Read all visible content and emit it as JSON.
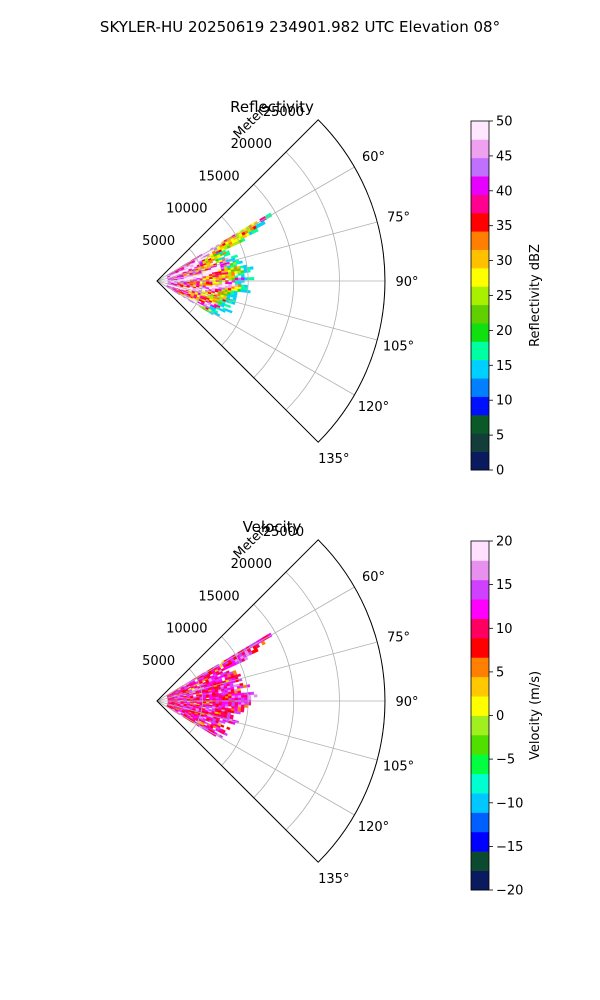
{
  "figure": {
    "title": "SKYLER-HU  20250619  234901.982 UTC Elevation 08°"
  },
  "chart_data": [
    {
      "type": "heatmap",
      "subtype": "polar-sector-ppi",
      "title": "Reflectivity",
      "radial_label": "Meters",
      "r_ticks": [
        {
          "value": 5000,
          "label": "5000"
        },
        {
          "value": 10000,
          "label": "10000"
        },
        {
          "value": 15000,
          "label": "15000"
        },
        {
          "value": 20000,
          "label": "20000"
        },
        {
          "value": 25000,
          "label": "25000"
        }
      ],
      "r_max": 25000,
      "theta_ticks": [
        {
          "value": 60,
          "label": "60°"
        },
        {
          "value": 75,
          "label": "75°"
        },
        {
          "value": 90,
          "label": "90°"
        },
        {
          "value": 105,
          "label": "105°"
        },
        {
          "value": 120,
          "label": "120°"
        },
        {
          "value": 135,
          "label": "135°"
        }
      ],
      "theta_range": [
        45,
        135
      ],
      "data_extent": {
        "azimuth_range": [
          59,
          121
        ],
        "max_range_m": 12000,
        "note_values": "echo concentrated within ~12 km, strongest returns 30-45 dBZ near 4-8 km"
      },
      "colorbar": {
        "label": "Reflectivity dBZ",
        "min": 0,
        "max": 50,
        "ticks": [
          0,
          5,
          10,
          15,
          20,
          25,
          30,
          35,
          40,
          45,
          50
        ],
        "tick_labels": [
          "0",
          "5",
          "10",
          "15",
          "20",
          "25",
          "30",
          "35",
          "40",
          "45",
          "50"
        ],
        "colors": [
          "#0a1a5e",
          "#123d3a",
          "#0a5a28",
          "#0010ff",
          "#0080ff",
          "#00d0ff",
          "#00ffa0",
          "#10e010",
          "#60d000",
          "#a8f000",
          "#ffff00",
          "#ffc000",
          "#ff8000",
          "#ff0000",
          "#ff0090",
          "#e800ff",
          "#c070ff",
          "#f0a0f0",
          "#ffe8ff"
        ]
      }
    },
    {
      "type": "heatmap",
      "subtype": "polar-sector-ppi",
      "title": "Velocity",
      "radial_label": "Meters",
      "r_ticks": [
        {
          "value": 5000,
          "label": "5000"
        },
        {
          "value": 10000,
          "label": "10000"
        },
        {
          "value": 15000,
          "label": "15000"
        },
        {
          "value": 20000,
          "label": "20000"
        },
        {
          "value": 25000,
          "label": "25000"
        }
      ],
      "r_max": 25000,
      "theta_ticks": [
        {
          "value": 60,
          "label": "60°"
        },
        {
          "value": 75,
          "label": "75°"
        },
        {
          "value": 90,
          "label": "90°"
        },
        {
          "value": 105,
          "label": "105°"
        },
        {
          "value": 120,
          "label": "120°"
        },
        {
          "value": 135,
          "label": "135°"
        }
      ],
      "theta_range": [
        45,
        135
      ],
      "data_extent": {
        "azimuth_range": [
          59,
          121
        ],
        "max_range_m": 12000,
        "note_values": "predominantly 10-15 m/s (red/magenta) with patches near 5 m/s"
      },
      "colorbar": {
        "label": "Velocity (m/s)",
        "min": -20,
        "max": 20,
        "ticks": [
          -20,
          -15,
          -10,
          -5,
          0,
          5,
          10,
          15,
          20
        ],
        "tick_labels": [
          "−20",
          "−15",
          "−10",
          "−5",
          "0",
          "5",
          "10",
          "15",
          "20"
        ],
        "colors": [
          "#0a1a5e",
          "#0c4a30",
          "#0000ff",
          "#0060ff",
          "#00c8ff",
          "#00ffd0",
          "#00ff40",
          "#50e000",
          "#a0f020",
          "#ffff00",
          "#ffc800",
          "#ff8000",
          "#ff0000",
          "#ff0060",
          "#ff00ff",
          "#d040ff",
          "#e890f0",
          "#ffe0ff"
        ]
      }
    }
  ]
}
